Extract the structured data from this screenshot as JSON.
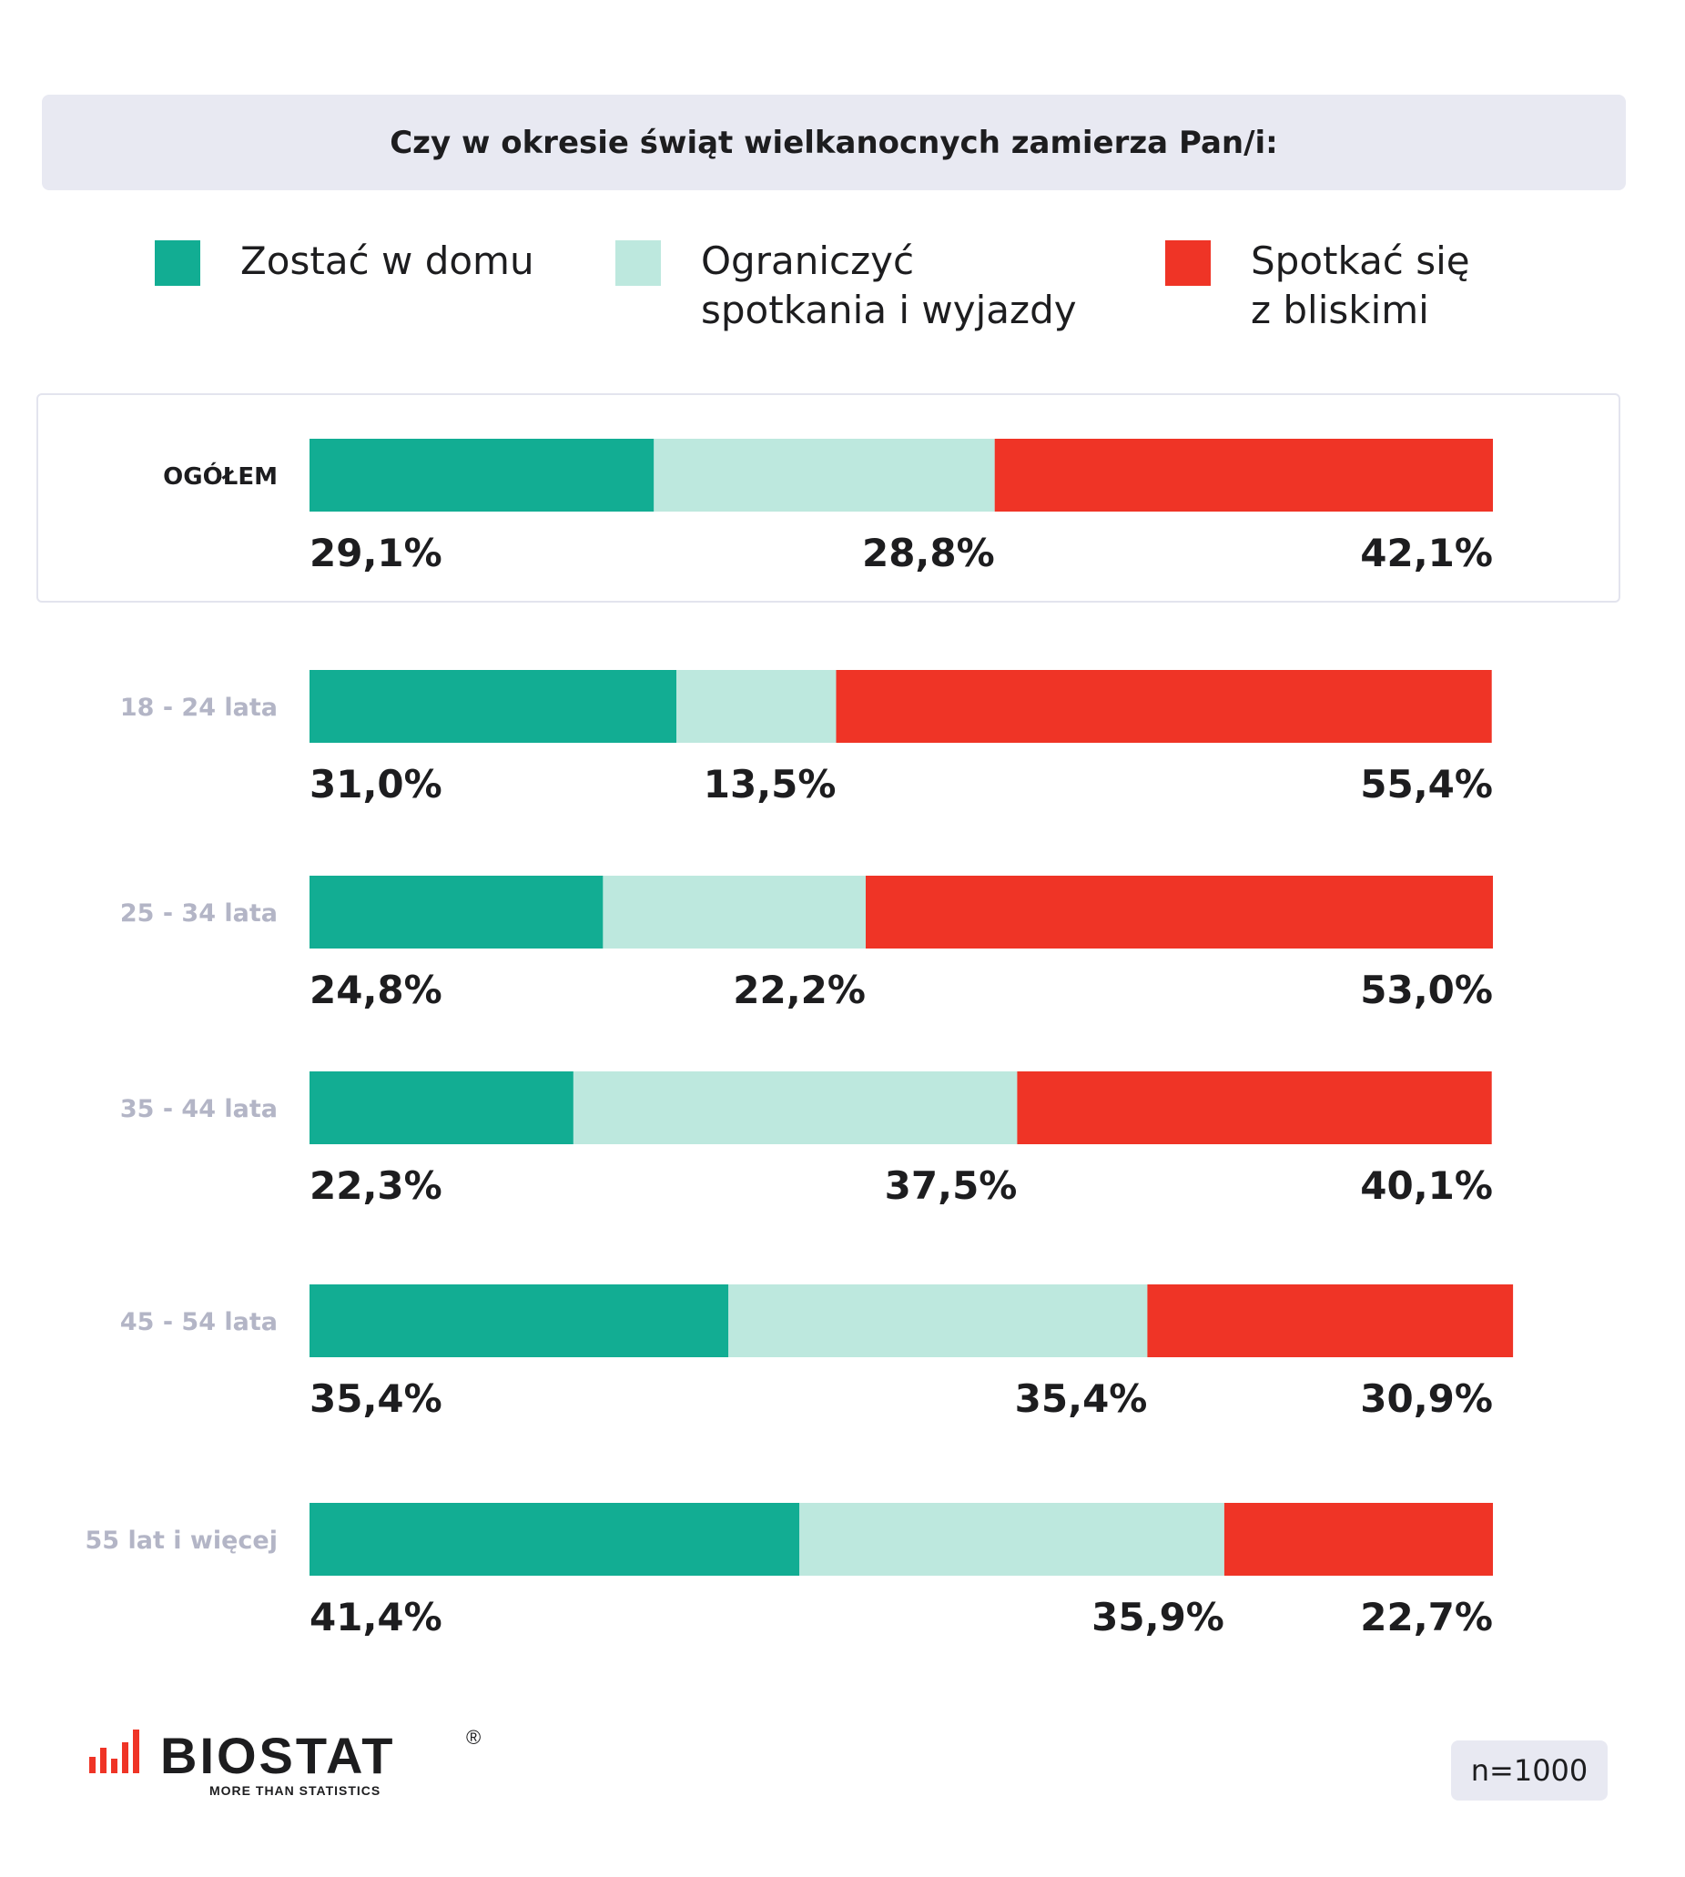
{
  "header": {
    "title": "Czy w okresie świąt wielkanocnych zamierza Pan/i:"
  },
  "colors": {
    "stay_home": "#12ad93",
    "limit": "#bde8de",
    "meet": "#ef3426",
    "group_label_primary": "#1d1d1f",
    "group_label_secondary": "#b3b5c6"
  },
  "chart_data": {
    "type": "bar",
    "orientation": "horizontal",
    "stacked": true,
    "title": "Czy w okresie świąt wielkanocnych zamierza Pan/i:",
    "categories": [
      "OGÓŁEM",
      "18 - 24 lata",
      "25 - 34 lata",
      "35 - 44 lata",
      "45 - 54 lata",
      "55 lat i więcej"
    ],
    "series": [
      {
        "name": "Zostać w domu",
        "values": [
          29.1,
          31.0,
          24.8,
          22.3,
          35.4,
          41.4
        ],
        "labels": [
          "29,1%",
          "31,0%",
          "24,8%",
          "22,3%",
          "35,4%",
          "41,4%"
        ]
      },
      {
        "name": "Ograniczyć\nspotkania i wyjazdy",
        "values": [
          28.8,
          13.5,
          22.2,
          37.5,
          35.4,
          35.9
        ],
        "labels": [
          "28,8%",
          "13,5%",
          "22,2%",
          "37,5%",
          "35,4%",
          "35,9%"
        ]
      },
      {
        "name": "Spotkać się\nz bliskimi",
        "values": [
          42.1,
          55.4,
          53.0,
          40.1,
          30.9,
          22.7
        ],
        "labels": [
          "42,1%",
          "55,4%",
          "53,0%",
          "40,1%",
          "30,9%",
          "22,7%"
        ]
      }
    ],
    "xlim": [
      0,
      100
    ],
    "legend": "top",
    "grid": false
  },
  "footer": {
    "logo_text": "BIOSTAT",
    "logo_mark": "®",
    "logo_tagline": "MORE THAN STATISTICS",
    "sample": "n=1000"
  }
}
